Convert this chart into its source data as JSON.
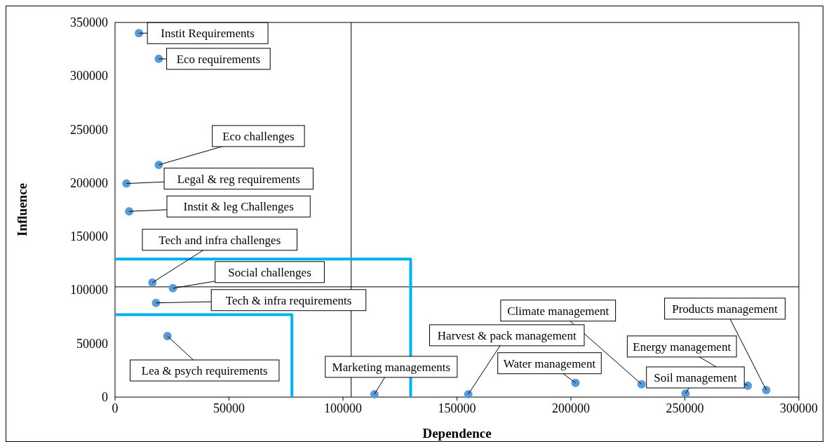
{
  "chart_data": {
    "type": "scatter",
    "xlabel": "Dependence",
    "ylabel": "Influence",
    "xlim": [
      0,
      300000
    ],
    "xticks": [
      0,
      50000,
      100000,
      150000,
      200000,
      250000,
      300000
    ],
    "ylim": [
      0,
      350000
    ],
    "yticks": [
      0,
      50000,
      100000,
      150000,
      200000,
      250000,
      300000,
      350000
    ],
    "grid": false,
    "series": [
      {
        "marker": "circle",
        "color": "#5b9bd5",
        "x": [
          10500,
          19200,
          19200,
          5000,
          6200,
          16400,
          25400,
          18000,
          23000,
          113800,
          155000,
          202000,
          231000,
          250300,
          277600,
          285700
        ],
        "values": [
          340000,
          316000,
          217000,
          199500,
          173500,
          107000,
          101700,
          88000,
          57000,
          2700,
          2700,
          13300,
          12000,
          3300,
          10600,
          6600
        ]
      },
      {
        "type": "line",
        "marker": "none",
        "color": "#00b0f0",
        "x": [
          0,
          129700,
          129700
        ],
        "values": [
          129000,
          129000,
          0
        ]
      },
      {
        "type": "line",
        "marker": "none",
        "color": "#00b0f0",
        "x": [
          0,
          77600,
          77600
        ],
        "values": [
          77000,
          77000,
          0
        ]
      }
    ],
    "ref_lines": [
      {
        "axis": "x",
        "value": 103600,
        "color": "#000000"
      },
      {
        "axis": "y",
        "value": 103000,
        "color": "#000000"
      }
    ],
    "annotations": [
      {
        "text": "Instit Requirements",
        "x": 10500,
        "y": 340000
      },
      {
        "text": "Eco requirements",
        "x": 19200,
        "y": 316000
      },
      {
        "text": "Eco challenges",
        "x": 19200,
        "y": 217000
      },
      {
        "text": "Legal & reg requirements",
        "x": 5000,
        "y": 199500
      },
      {
        "text": "Instit & leg Challenges",
        "x": 6200,
        "y": 173500
      },
      {
        "text": "Tech and infra challenges",
        "x": 16400,
        "y": 107000
      },
      {
        "text": "Social challenges",
        "x": 25400,
        "y": 101700
      },
      {
        "text": "Tech & infra requirements",
        "x": 18000,
        "y": 88000
      },
      {
        "text": "Lea & psych requirements",
        "x": 23000,
        "y": 57000
      },
      {
        "text": "Marketing managements",
        "x": 113800,
        "y": 2700
      },
      {
        "text": "Harvest & pack management",
        "x": 155000,
        "y": 2700
      },
      {
        "text": "Water management",
        "x": 202000,
        "y": 13300
      },
      {
        "text": "Climate management",
        "x": 231000,
        "y": 12000
      },
      {
        "text": "Soil management",
        "x": 250300,
        "y": 3300
      },
      {
        "text": "Energy management",
        "x": 277600,
        "y": 10600
      },
      {
        "text": "Products management",
        "x": 285700,
        "y": 6600
      }
    ]
  }
}
